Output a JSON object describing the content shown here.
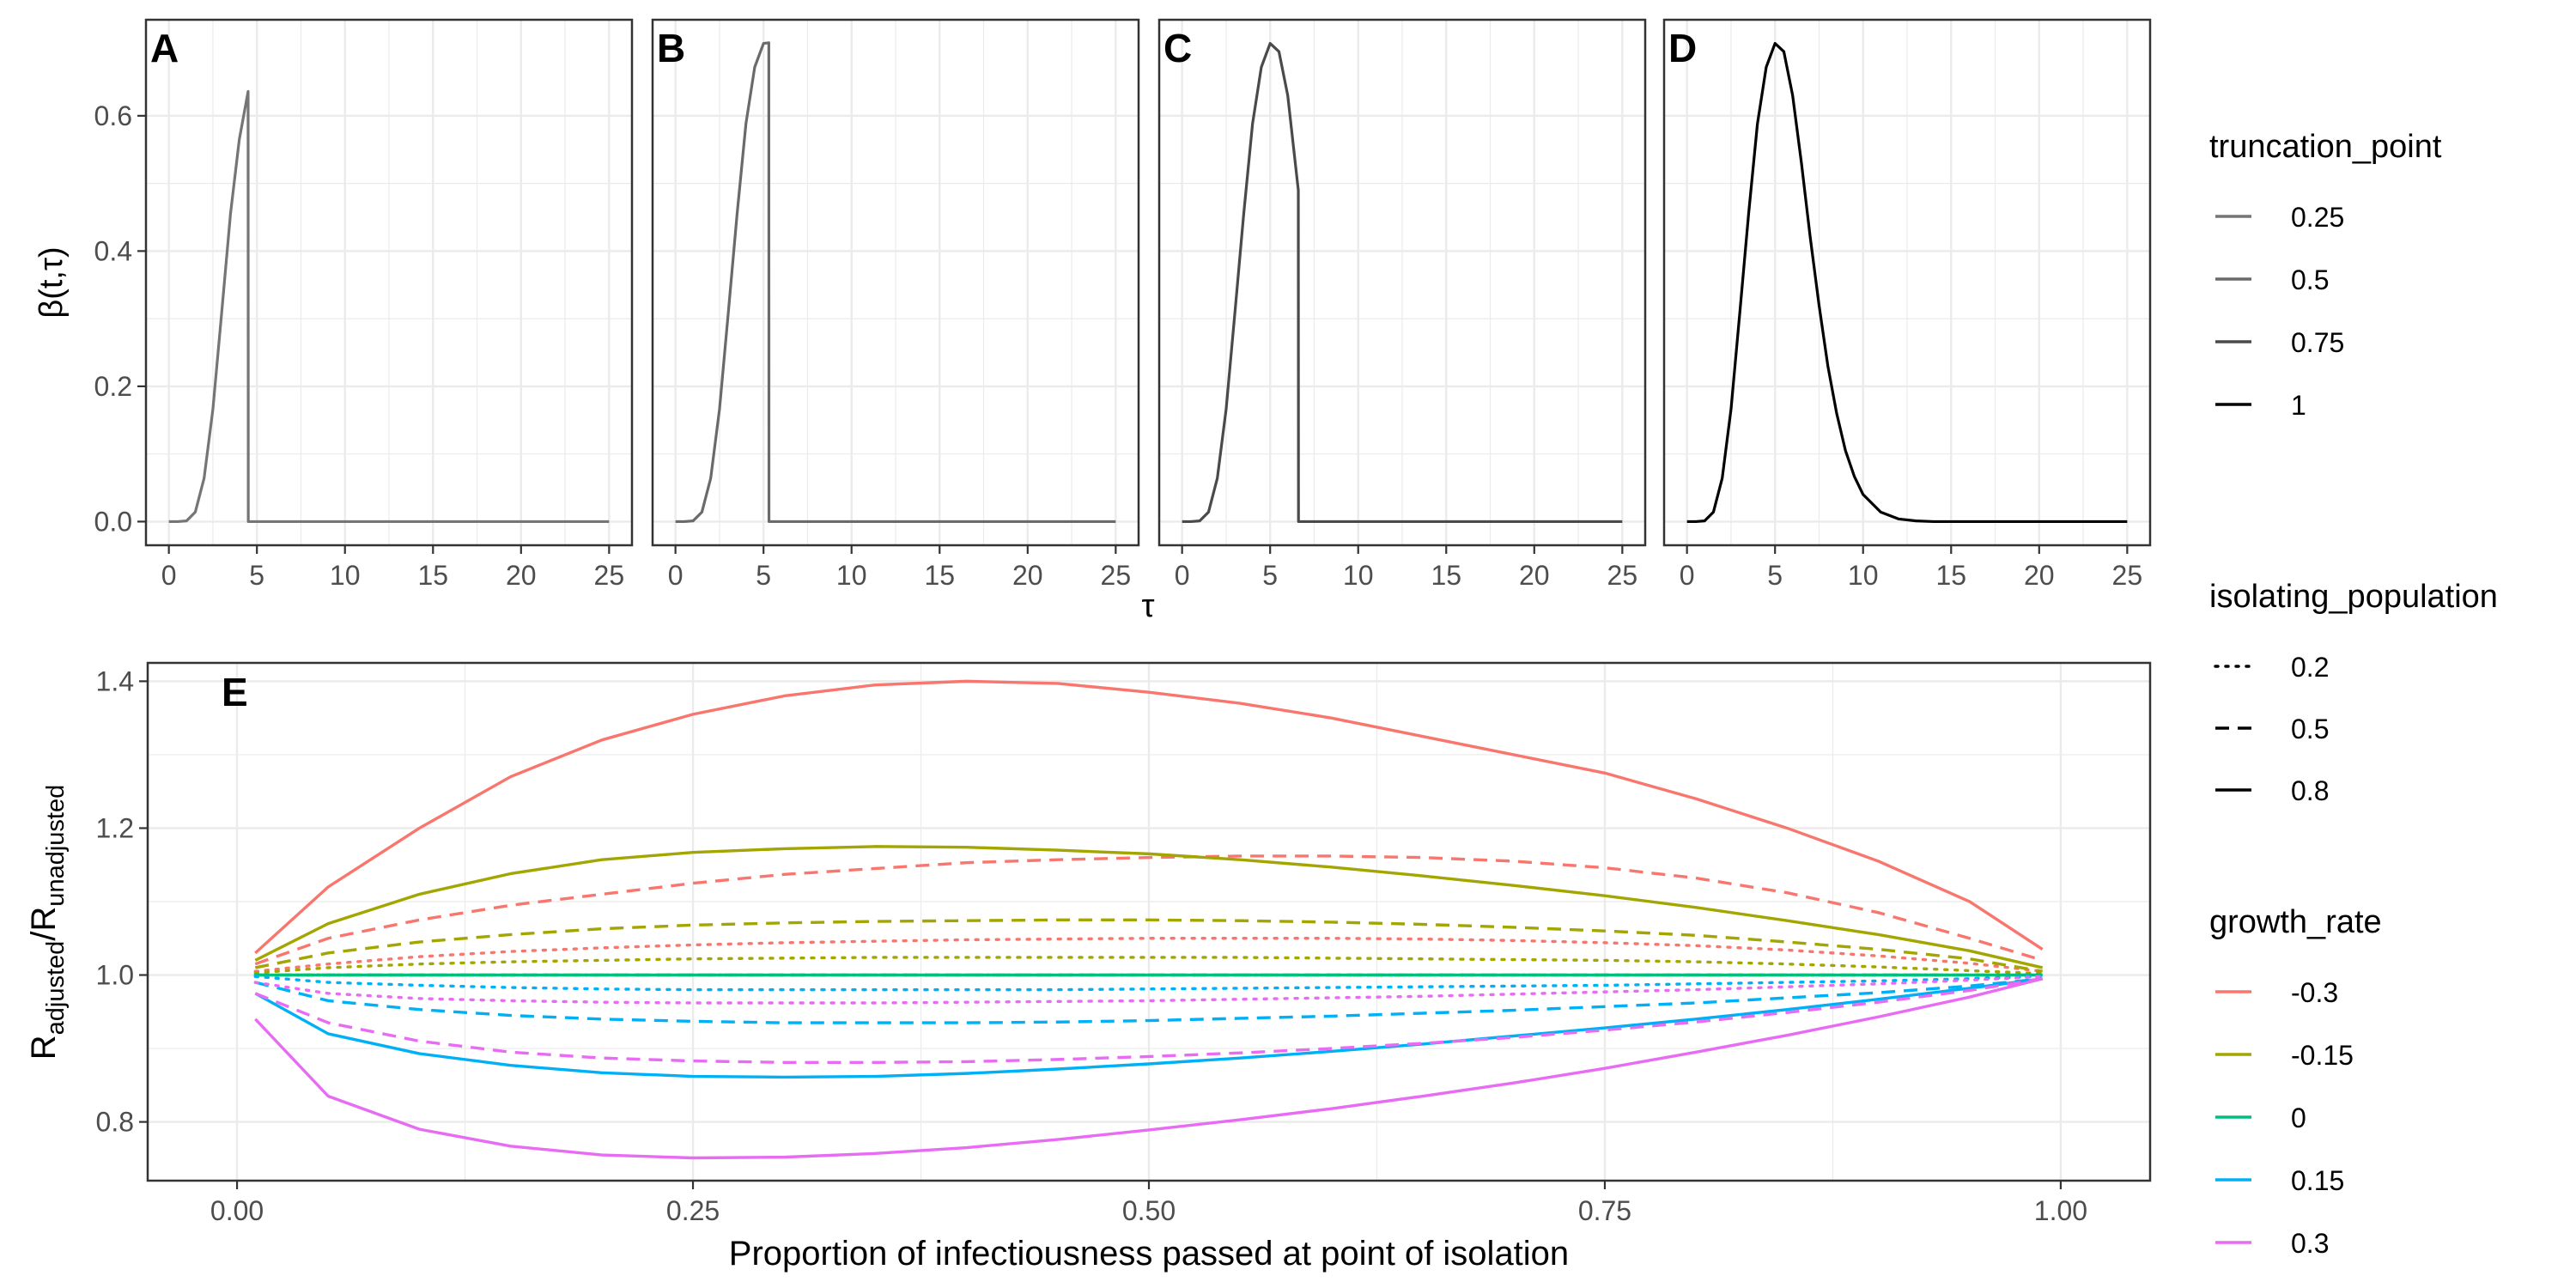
{
  "chart_data": [
    {
      "type": "line",
      "panel_tag": "A",
      "ylabel": "β(t,τ)",
      "xlabel": "τ",
      "xlim": [
        -1.3,
        26.3
      ],
      "ylim": [
        -0.035,
        0.742
      ],
      "xticks": [
        0,
        5,
        10,
        15,
        20,
        25
      ],
      "xtick_labels": [
        "0",
        "5",
        "10",
        "15",
        "20",
        "25"
      ],
      "yticks": [
        0.0,
        0.2,
        0.4,
        0.6
      ],
      "ytick_labels": [
        "0.0",
        "0.2",
        "0.4",
        "0.6"
      ],
      "grid": true,
      "series": [
        {
          "truncation_point": 0.25,
          "color": "#757575",
          "points": [
            [
              0,
              0
            ],
            [
              0.5,
              0
            ],
            [
              1,
              0.001
            ],
            [
              1.5,
              0.014
            ],
            [
              2,
              0.064
            ],
            [
              2.5,
              0.166
            ],
            [
              3,
              0.309
            ],
            [
              3.5,
              0.455
            ],
            [
              4,
              0.565
            ],
            [
              4.5,
              0.636
            ],
            [
              4.51,
              0
            ],
            [
              25,
              0
            ]
          ]
        }
      ]
    },
    {
      "type": "line",
      "panel_tag": "B",
      "xlim": [
        -1.3,
        26.3
      ],
      "ylim": [
        -0.035,
        0.742
      ],
      "xticks": [
        0,
        5,
        10,
        15,
        20,
        25
      ],
      "xtick_labels": [
        "0",
        "5",
        "10",
        "15",
        "20",
        "25"
      ],
      "grid": true,
      "series": [
        {
          "truncation_point": 0.5,
          "color": "#6a6a6a",
          "points": [
            [
              0,
              0
            ],
            [
              0.5,
              0
            ],
            [
              1,
              0.001
            ],
            [
              1.5,
              0.014
            ],
            [
              2,
              0.064
            ],
            [
              2.5,
              0.166
            ],
            [
              3,
              0.309
            ],
            [
              3.5,
              0.455
            ],
            [
              4,
              0.588
            ],
            [
              4.5,
              0.672
            ],
            [
              5,
              0.707
            ],
            [
              5.3,
              0.708
            ],
            [
              5.31,
              0
            ],
            [
              25,
              0
            ]
          ]
        }
      ]
    },
    {
      "type": "line",
      "panel_tag": "C",
      "xlim": [
        -1.3,
        26.3
      ],
      "ylim": [
        -0.035,
        0.742
      ],
      "xticks": [
        0,
        5,
        10,
        15,
        20,
        25
      ],
      "xtick_labels": [
        "0",
        "5",
        "10",
        "15",
        "20",
        "25"
      ],
      "grid": true,
      "series": [
        {
          "truncation_point": 0.75,
          "color": "#4a4a4a",
          "points": [
            [
              0,
              0
            ],
            [
              0.5,
              0
            ],
            [
              1,
              0.001
            ],
            [
              1.5,
              0.014
            ],
            [
              2,
              0.064
            ],
            [
              2.5,
              0.166
            ],
            [
              3,
              0.309
            ],
            [
              3.5,
              0.455
            ],
            [
              4,
              0.588
            ],
            [
              4.5,
              0.672
            ],
            [
              5,
              0.707
            ],
            [
              5.5,
              0.695
            ],
            [
              6,
              0.63
            ],
            [
              6.6,
              0.49
            ],
            [
              6.61,
              0
            ],
            [
              25,
              0
            ]
          ]
        }
      ]
    },
    {
      "type": "line",
      "panel_tag": "D",
      "xlim": [
        -1.3,
        26.3
      ],
      "ylim": [
        -0.035,
        0.742
      ],
      "xticks": [
        0,
        5,
        10,
        15,
        20,
        25
      ],
      "xtick_labels": [
        "0",
        "5",
        "10",
        "15",
        "20",
        "25"
      ],
      "grid": true,
      "series": [
        {
          "truncation_point": 1,
          "color": "#000000",
          "points": [
            [
              0,
              0
            ],
            [
              0.5,
              0
            ],
            [
              1,
              0.001
            ],
            [
              1.5,
              0.014
            ],
            [
              2,
              0.064
            ],
            [
              2.5,
              0.166
            ],
            [
              3,
              0.309
            ],
            [
              3.5,
              0.455
            ],
            [
              4,
              0.588
            ],
            [
              4.5,
              0.672
            ],
            [
              5,
              0.707
            ],
            [
              5.5,
              0.695
            ],
            [
              6,
              0.63
            ],
            [
              6.5,
              0.53
            ],
            [
              7,
              0.42
            ],
            [
              7.5,
              0.32
            ],
            [
              8,
              0.23
            ],
            [
              8.5,
              0.16
            ],
            [
              9,
              0.105
            ],
            [
              9.5,
              0.067
            ],
            [
              10,
              0.04
            ],
            [
              11,
              0.014
            ],
            [
              12,
              0.004
            ],
            [
              13,
              0.001
            ],
            [
              14,
              0
            ],
            [
              25,
              0
            ]
          ]
        }
      ]
    },
    {
      "type": "line",
      "panel_tag": "E",
      "xlabel": "Proportion of infectiousness passed at point of isolation",
      "ylabel_main": "R",
      "ylabel_num_sub": "adjusted",
      "ylabel_sep": "/R",
      "ylabel_den_sub": "unadjusted",
      "xlim": [
        -0.049,
        1.049
      ],
      "ylim": [
        0.72,
        1.425
      ],
      "xticks": [
        0,
        0.25,
        0.5,
        0.75,
        1
      ],
      "xtick_labels": [
        "0.00",
        "0.25",
        "0.50",
        "0.75",
        "1.00"
      ],
      "yticks": [
        0.8,
        1.0,
        1.2,
        1.4
      ],
      "ytick_labels": [
        "0.8",
        "1.0",
        "1.2",
        "1.4"
      ],
      "grid": true,
      "x": [
        0.01,
        0.05,
        0.1,
        0.15,
        0.2,
        0.25,
        0.3,
        0.35,
        0.4,
        0.45,
        0.5,
        0.55,
        0.6,
        0.65,
        0.7,
        0.75,
        0.8,
        0.85,
        0.9,
        0.95,
        0.99
      ],
      "series": [
        {
          "growth_rate": -0.3,
          "isolating_population": 0.8,
          "color": "#F8766D",
          "dash": "solid",
          "values": [
            1.03,
            1.12,
            1.2,
            1.27,
            1.32,
            1.355,
            1.38,
            1.395,
            1.4,
            1.397,
            1.385,
            1.37,
            1.35,
            1.325,
            1.3,
            1.275,
            1.24,
            1.2,
            1.155,
            1.1,
            1.035
          ]
        },
        {
          "growth_rate": -0.3,
          "isolating_population": 0.5,
          "color": "#F8766D",
          "dash": "dashed",
          "values": [
            1.015,
            1.05,
            1.075,
            1.095,
            1.11,
            1.125,
            1.137,
            1.145,
            1.153,
            1.157,
            1.16,
            1.162,
            1.162,
            1.16,
            1.155,
            1.146,
            1.132,
            1.112,
            1.085,
            1.05,
            1.02
          ]
        },
        {
          "growth_rate": -0.3,
          "isolating_population": 0.2,
          "color": "#F8766D",
          "dash": "dotted",
          "values": [
            1.005,
            1.015,
            1.025,
            1.032,
            1.037,
            1.041,
            1.044,
            1.046,
            1.048,
            1.049,
            1.05,
            1.05,
            1.05,
            1.049,
            1.047,
            1.044,
            1.04,
            1.034,
            1.026,
            1.016,
            1.005
          ]
        },
        {
          "growth_rate": -0.15,
          "isolating_population": 0.8,
          "color": "#A3A500",
          "dash": "solid",
          "values": [
            1.02,
            1.07,
            1.11,
            1.138,
            1.157,
            1.167,
            1.172,
            1.175,
            1.174,
            1.17,
            1.165,
            1.157,
            1.147,
            1.135,
            1.122,
            1.108,
            1.092,
            1.074,
            1.055,
            1.033,
            1.01
          ]
        },
        {
          "growth_rate": -0.15,
          "isolating_population": 0.5,
          "color": "#A3A500",
          "dash": "dashed",
          "values": [
            1.01,
            1.03,
            1.045,
            1.055,
            1.063,
            1.068,
            1.071,
            1.073,
            1.074,
            1.075,
            1.075,
            1.074,
            1.072,
            1.069,
            1.065,
            1.06,
            1.054,
            1.045,
            1.035,
            1.022,
            1.005
          ]
        },
        {
          "growth_rate": -0.15,
          "isolating_population": 0.2,
          "color": "#A3A500",
          "dash": "dotted",
          "values": [
            1.003,
            1.01,
            1.015,
            1.018,
            1.02,
            1.022,
            1.023,
            1.024,
            1.024,
            1.024,
            1.024,
            1.024,
            1.023,
            1.022,
            1.021,
            1.02,
            1.018,
            1.015,
            1.011,
            1.006,
            1.002
          ]
        },
        {
          "growth_rate": 0,
          "isolating_population": 0.8,
          "color": "#00BF7D",
          "dash": "solid",
          "values": [
            1,
            1,
            1,
            1,
            1,
            1,
            1,
            1,
            1,
            1,
            1,
            1,
            1,
            1,
            1,
            1,
            1,
            1,
            1,
            1,
            1
          ]
        },
        {
          "growth_rate": 0,
          "isolating_population": 0.5,
          "color": "#00BF7D",
          "dash": "dashed",
          "values": [
            1,
            1,
            1,
            1,
            1,
            1,
            1,
            1,
            1,
            1,
            1,
            1,
            1,
            1,
            1,
            1,
            1,
            1,
            1,
            1,
            1
          ]
        },
        {
          "growth_rate": 0,
          "isolating_population": 0.2,
          "color": "#00BF7D",
          "dash": "dotted",
          "values": [
            1,
            1,
            1,
            1,
            1,
            1,
            1,
            1,
            1,
            1,
            1,
            1,
            1,
            1,
            1,
            1,
            1,
            1,
            1,
            1,
            1
          ]
        },
        {
          "growth_rate": 0.15,
          "isolating_population": 0.8,
          "color": "#00B0F6",
          "dash": "solid",
          "values": [
            0.975,
            0.92,
            0.893,
            0.877,
            0.867,
            0.862,
            0.861,
            0.862,
            0.866,
            0.872,
            0.879,
            0.887,
            0.896,
            0.906,
            0.917,
            0.928,
            0.94,
            0.953,
            0.967,
            0.982,
            0.995
          ]
        },
        {
          "growth_rate": 0.15,
          "isolating_population": 0.5,
          "color": "#00B0F6",
          "dash": "dashed",
          "values": [
            0.99,
            0.965,
            0.953,
            0.945,
            0.94,
            0.937,
            0.935,
            0.935,
            0.935,
            0.936,
            0.938,
            0.941,
            0.944,
            0.948,
            0.952,
            0.957,
            0.962,
            0.969,
            0.976,
            0.985,
            0.995
          ]
        },
        {
          "growth_rate": 0.15,
          "isolating_population": 0.2,
          "color": "#00B0F6",
          "dash": "dotted",
          "values": [
            0.998,
            0.99,
            0.986,
            0.983,
            0.981,
            0.98,
            0.98,
            0.98,
            0.98,
            0.98,
            0.981,
            0.982,
            0.983,
            0.984,
            0.985,
            0.986,
            0.988,
            0.99,
            0.992,
            0.995,
            0.998
          ]
        },
        {
          "growth_rate": 0.3,
          "isolating_population": 0.8,
          "color": "#E76BF3",
          "dash": "solid",
          "values": [
            0.94,
            0.835,
            0.79,
            0.767,
            0.755,
            0.751,
            0.752,
            0.757,
            0.765,
            0.776,
            0.789,
            0.803,
            0.818,
            0.835,
            0.853,
            0.873,
            0.895,
            0.918,
            0.943,
            0.97,
            0.995
          ]
        },
        {
          "growth_rate": 0.3,
          "isolating_population": 0.5,
          "color": "#E76BF3",
          "dash": "dashed",
          "values": [
            0.975,
            0.935,
            0.91,
            0.895,
            0.887,
            0.883,
            0.881,
            0.881,
            0.882,
            0.885,
            0.889,
            0.894,
            0.9,
            0.907,
            0.915,
            0.925,
            0.936,
            0.949,
            0.963,
            0.979,
            0.995
          ]
        },
        {
          "growth_rate": 0.3,
          "isolating_population": 0.2,
          "color": "#E76BF3",
          "dash": "dotted",
          "values": [
            0.99,
            0.975,
            0.968,
            0.965,
            0.963,
            0.962,
            0.962,
            0.962,
            0.963,
            0.964,
            0.965,
            0.967,
            0.969,
            0.971,
            0.974,
            0.977,
            0.98,
            0.984,
            0.988,
            0.993,
            0.998
          ]
        }
      ]
    }
  ],
  "legend": {
    "truncation_point": {
      "title": "truncation_point",
      "items": [
        {
          "label": "0.25",
          "color": "#757575"
        },
        {
          "label": "0.5",
          "color": "#6a6a6a"
        },
        {
          "label": "0.75",
          "color": "#4a4a4a"
        },
        {
          "label": "1",
          "color": "#000000"
        }
      ]
    },
    "isolating_population": {
      "title": "isolating_population",
      "items": [
        {
          "label": "0.2",
          "dash": "dotted"
        },
        {
          "label": "0.5",
          "dash": "dashed"
        },
        {
          "label": "0.8",
          "dash": "solid"
        }
      ]
    },
    "growth_rate": {
      "title": "growth_rate",
      "items": [
        {
          "label": "-0.3",
          "color": "#F8766D"
        },
        {
          "label": "-0.15",
          "color": "#A3A500"
        },
        {
          "label": "0",
          "color": "#00BF7D"
        },
        {
          "label": "0.15",
          "color": "#00B0F6"
        },
        {
          "label": "0.3",
          "color": "#E76BF3"
        }
      ]
    }
  }
}
